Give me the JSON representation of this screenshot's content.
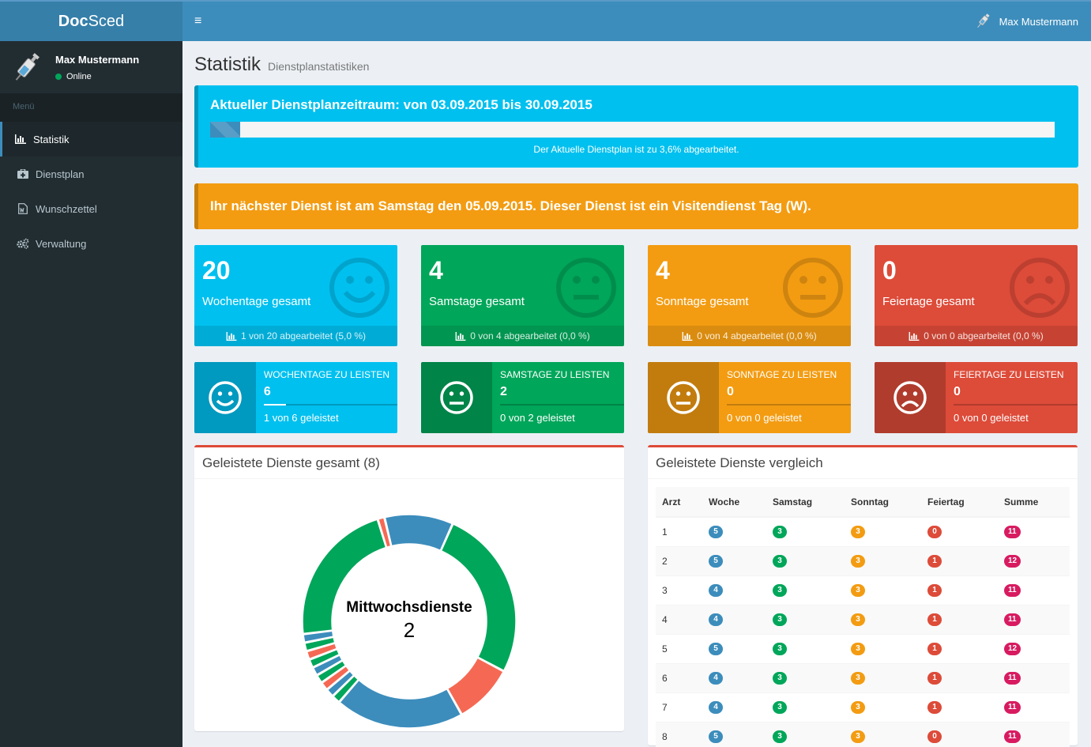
{
  "app": {
    "logo_bold": "Doc",
    "logo_rest": "Sced"
  },
  "user": {
    "name": "Max Mustermann",
    "status": "Online"
  },
  "sidebar": {
    "header": "Menü",
    "items": [
      {
        "label": "Statistik",
        "icon": "bar-chart-icon"
      },
      {
        "label": "Dienstplan",
        "icon": "medkit-icon"
      },
      {
        "label": "Wunschzettel",
        "icon": "word-file-icon"
      },
      {
        "label": "Verwaltung",
        "icon": "cogs-icon"
      }
    ]
  },
  "topbar": {
    "menu_toggle": "≡",
    "user_name": "Max Mustermann"
  },
  "page": {
    "title": "Statistik",
    "subtitle": "Dienstplanstatistiken"
  },
  "period": {
    "heading": "Aktueller Dienstplanzeitraum: von 03.09.2015 bis 30.09.2015",
    "progress_fraction": 0.036,
    "text": "Der Aktuelle Dienstplan ist zu 3,6% abgearbeitet."
  },
  "next_duty": {
    "text": "Ihr nächster Dienst ist am Samstag den 05.09.2015. Dieser Dienst ist ein Visitendienst Tag (W)."
  },
  "summary_boxes": [
    {
      "value": "20",
      "label": "Wochentage gesamt",
      "footer": "1 von 20 abgearbeitet (5,0 %)",
      "color": "#00c0ef",
      "icon": "smile-icon"
    },
    {
      "value": "4",
      "label": "Samstage gesamt",
      "footer": "0 von 4 abgearbeitet (0,0 %)",
      "color": "#00a65a",
      "icon": "meh-icon"
    },
    {
      "value": "4",
      "label": "Sonntage gesamt",
      "footer": "0 von 4 abgearbeitet (0,0 %)",
      "color": "#f39c12",
      "icon": "meh-icon"
    },
    {
      "value": "0",
      "label": "Feiertage gesamt",
      "footer": "0 von 0 abgearbeitet (0,0 %)",
      "color": "#dd4b39",
      "icon": "frown-icon"
    }
  ],
  "todo_boxes": [
    {
      "title": "Wochentage zu leisten",
      "value": "6",
      "desc": "1 von 6 geleistet",
      "progress_fraction": 0.167,
      "icon": "smile-icon"
    },
    {
      "title": "Samstage zu leisten",
      "value": "2",
      "desc": "0 von 2 geleistet",
      "progress_fraction": 0,
      "icon": "meh-icon"
    },
    {
      "title": "Sonntage zu leisten",
      "value": "0",
      "desc": "0 von 0 geleistet",
      "progress_fraction": 0,
      "icon": "meh-icon"
    },
    {
      "title": "Feiertage zu leisten",
      "value": "0",
      "desc": "0 von 0 geleistet",
      "progress_fraction": 0,
      "icon": "frown-icon"
    }
  ],
  "donut_panel": {
    "title": "Geleistete Dienste gesamt (8)",
    "center_label": "Mittwochsdienste",
    "center_value": "2"
  },
  "chart_data": {
    "type": "pie",
    "series": [
      {
        "value": 2,
        "color": "#00a65a"
      },
      {
        "value": 0.7,
        "color": "#f56954"
      },
      {
        "value": 1.5,
        "color": "#3c8dbc"
      },
      {
        "value": 0.1,
        "color": "#00a65a"
      },
      {
        "value": 0.1,
        "color": "#3c8dbc"
      },
      {
        "value": 0.1,
        "color": "#f56954"
      },
      {
        "value": 0.1,
        "color": "#00a65a"
      },
      {
        "value": 0.1,
        "color": "#3c8dbc"
      },
      {
        "value": 0.1,
        "color": "#00a65a"
      },
      {
        "value": 0.1,
        "color": "#f56954"
      },
      {
        "value": 0.1,
        "color": "#00a65a"
      },
      {
        "value": 0.1,
        "color": "#3c8dbc"
      },
      {
        "value": 1.7,
        "color": "#00a65a"
      },
      {
        "value": 0.08,
        "color": "#f56954"
      },
      {
        "value": 0.8,
        "color": "#3c8dbc"
      }
    ]
  },
  "compare_panel": {
    "title": "Geleistete Dienste vergleich",
    "columns": [
      "Arzt",
      "Woche",
      "Samstag",
      "Sonntag",
      "Feiertag",
      "Summe"
    ],
    "rows": [
      [
        "1",
        "5",
        "3",
        "3",
        "0",
        "11"
      ],
      [
        "2",
        "5",
        "3",
        "3",
        "1",
        "12"
      ],
      [
        "3",
        "4",
        "3",
        "3",
        "1",
        "11"
      ],
      [
        "4",
        "4",
        "3",
        "3",
        "1",
        "11"
      ],
      [
        "5",
        "5",
        "3",
        "3",
        "1",
        "12"
      ],
      [
        "6",
        "4",
        "3",
        "3",
        "1",
        "11"
      ],
      [
        "7",
        "4",
        "3",
        "3",
        "1",
        "11"
      ],
      [
        "8",
        "5",
        "3",
        "3",
        "0",
        "11"
      ]
    ]
  }
}
